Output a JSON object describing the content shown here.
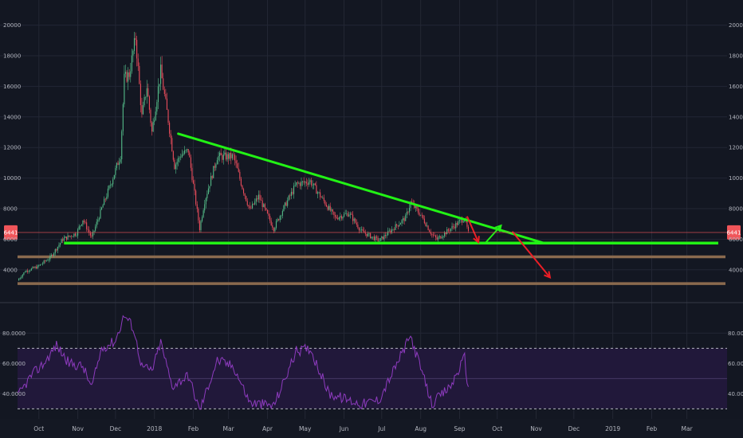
{
  "chart_data": [
    {
      "type": "candlestick",
      "title": "",
      "ylim": [
        3000,
        20500
      ],
      "y_ticks": [
        "20000",
        "18000",
        "16000",
        "14000",
        "12000",
        "10000",
        "8000",
        "6000",
        "4000"
      ],
      "last_price_label": "6441",
      "x_ticks": [
        "Oct",
        "Nov",
        "Dec",
        "2018",
        "Feb",
        "Mar",
        "Apr",
        "May",
        "Jun",
        "Jul",
        "Aug",
        "Sep",
        "Oct",
        "Nov",
        "Dec",
        "2019",
        "Feb",
        "Mar"
      ],
      "price_path": [
        [
          "2017-09-14",
          3300
        ],
        [
          "2017-09-20",
          3900
        ],
        [
          "2017-09-30",
          4200
        ],
        [
          "2017-10-10",
          4800
        ],
        [
          "2017-10-20",
          6000
        ],
        [
          "2017-10-31",
          6400
        ],
        [
          "2017-11-05",
          7300
        ],
        [
          "2017-11-12",
          6100
        ],
        [
          "2017-11-20",
          8000
        ],
        [
          "2017-11-28",
          9800
        ],
        [
          "2017-12-05",
          11500
        ],
        [
          "2017-12-08",
          16500
        ],
        [
          "2017-12-12",
          16800
        ],
        [
          "2017-12-17",
          19200
        ],
        [
          "2017-12-22",
          14000
        ],
        [
          "2017-12-26",
          16000
        ],
        [
          "2017-12-30",
          13000
        ],
        [
          "2018-01-06",
          17000
        ],
        [
          "2018-01-12",
          13800
        ],
        [
          "2018-01-17",
          10800
        ],
        [
          "2018-01-22",
          11500
        ],
        [
          "2018-01-28",
          11800
        ],
        [
          "2018-02-06",
          6700
        ],
        [
          "2018-02-10",
          8500
        ],
        [
          "2018-02-20",
          11400
        ],
        [
          "2018-03-05",
          11400
        ],
        [
          "2018-03-12",
          9400
        ],
        [
          "2018-03-18",
          7900
        ],
        [
          "2018-03-25",
          8800
        ],
        [
          "2018-04-06",
          6700
        ],
        [
          "2018-04-13",
          7900
        ],
        [
          "2018-04-24",
          9600
        ],
        [
          "2018-05-05",
          9800
        ],
        [
          "2018-05-15",
          8600
        ],
        [
          "2018-05-25",
          7400
        ],
        [
          "2018-06-05",
          7700
        ],
        [
          "2018-06-15",
          6500
        ],
        [
          "2018-06-29",
          5900
        ],
        [
          "2018-07-10",
          6700
        ],
        [
          "2018-07-20",
          7400
        ],
        [
          "2018-07-24",
          8400
        ],
        [
          "2018-08-01",
          7600
        ],
        [
          "2018-08-10",
          6300
        ],
        [
          "2018-08-14",
          6000
        ],
        [
          "2018-08-25",
          6700
        ],
        [
          "2018-09-05",
          7400
        ],
        [
          "2018-09-08",
          6400
        ]
      ]
    },
    {
      "type": "line",
      "title": "",
      "ylim": [
        27,
        97
      ],
      "y_ticks": [
        "80.0000",
        "60.0000",
        "40.0000"
      ],
      "bands": [
        30,
        50,
        70
      ],
      "rsi_path": [
        [
          "2017-09-14",
          38
        ],
        [
          "2017-09-25",
          52
        ],
        [
          "2017-10-05",
          60
        ],
        [
          "2017-10-15",
          72
        ],
        [
          "2017-10-25",
          60
        ],
        [
          "2017-11-05",
          58
        ],
        [
          "2017-11-12",
          44
        ],
        [
          "2017-11-20",
          70
        ],
        [
          "2017-12-01",
          75
        ],
        [
          "2017-12-08",
          92
        ],
        [
          "2017-12-15",
          84
        ],
        [
          "2017-12-22",
          58
        ],
        [
          "2017-12-30",
          55
        ],
        [
          "2018-01-06",
          74
        ],
        [
          "2018-01-15",
          45
        ],
        [
          "2018-01-28",
          52
        ],
        [
          "2018-02-06",
          29
        ],
        [
          "2018-02-20",
          62
        ],
        [
          "2018-03-05",
          58
        ],
        [
          "2018-03-18",
          34
        ],
        [
          "2018-04-06",
          32
        ],
        [
          "2018-04-24",
          68
        ],
        [
          "2018-05-05",
          70
        ],
        [
          "2018-05-20",
          40
        ],
        [
          "2018-06-15",
          33
        ],
        [
          "2018-06-29",
          36
        ],
        [
          "2018-07-24",
          78
        ],
        [
          "2018-08-10",
          33
        ],
        [
          "2018-08-25",
          45
        ],
        [
          "2018-09-05",
          64
        ],
        [
          "2018-09-08",
          42
        ]
      ]
    }
  ],
  "annotations": {
    "colors": {
      "green": "#22f215",
      "red": "#ec1e26",
      "brown": "#8a6a4e",
      "rsi_line": "#8e3bbf",
      "rsi_fill": "#21183a",
      "price_tag": "#f0555a"
    },
    "resistance_trendline": [
      [
        "2018-01-20",
        12900
      ],
      [
        "2018-11-07",
        5750
      ]
    ],
    "support_line": [
      [
        "2017-10-21",
        5750
      ],
      [
        "2019-03-26",
        5750
      ]
    ],
    "lower_support_levels": [
      4850,
      3100
    ],
    "forecast_arrows": [
      {
        "color": "red",
        "from": [
          "2018-09-07",
          7500
        ],
        "to": [
          "2018-09-16",
          5800
        ]
      },
      {
        "color": "green",
        "from": [
          "2018-09-22",
          5800
        ],
        "to": [
          "2018-10-04",
          6900
        ]
      },
      {
        "color": "red",
        "from": [
          "2018-10-13",
          6500
        ],
        "to": [
          "2018-11-12",
          3500
        ]
      }
    ]
  }
}
